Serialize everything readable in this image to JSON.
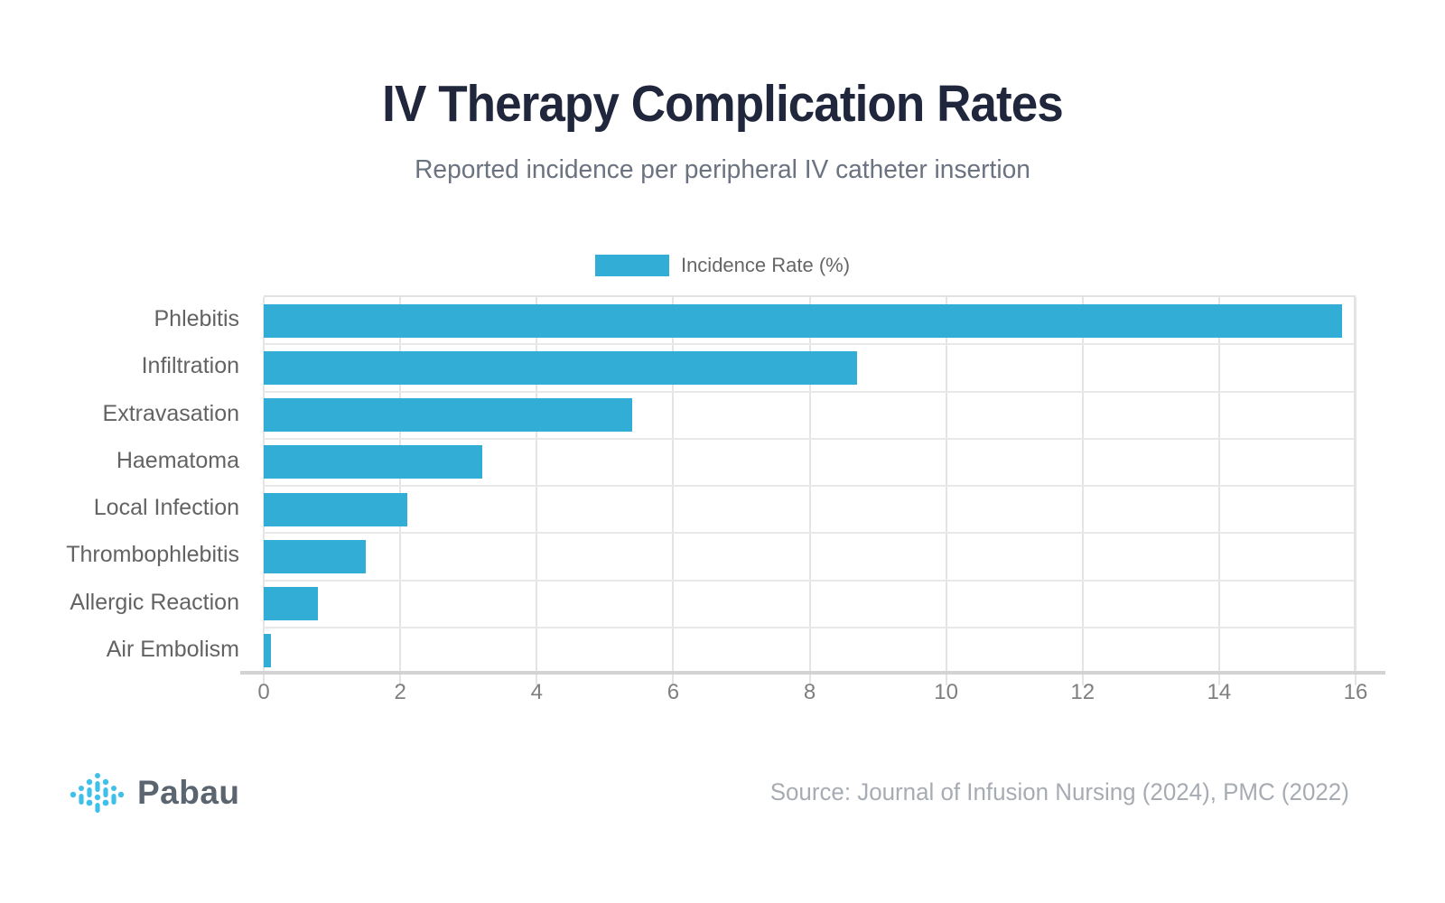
{
  "header": {
    "title": "IV Therapy Complication Rates",
    "subtitle": "Reported incidence per peripheral IV catheter insertion"
  },
  "legend": {
    "label": "Incidence Rate (%)"
  },
  "chart_data": {
    "type": "bar",
    "orientation": "horizontal",
    "title": "IV Therapy Complication Rates",
    "subtitle": "Reported incidence per peripheral IV catheter insertion",
    "series_name": "Incidence Rate (%)",
    "categories": [
      "Phlebitis",
      "Infiltration",
      "Extravasation",
      "Haematoma",
      "Local Infection",
      "Thrombophlebitis",
      "Allergic Reaction",
      "Air Embolism"
    ],
    "values": [
      15.8,
      8.7,
      5.4,
      3.2,
      2.1,
      1.5,
      0.8,
      0.1
    ],
    "xlabel": "",
    "ylabel": "",
    "xlim": [
      0,
      16
    ],
    "xticks": [
      0,
      2,
      4,
      6,
      8,
      10,
      12,
      14,
      16
    ],
    "grid": true,
    "bar_color": "#32aed6",
    "legend_position": "top-center"
  },
  "footer": {
    "brand": "Pabau",
    "source": "Source: Journal of Infusion Nursing (2024), PMC (2022)"
  },
  "colors": {
    "bar": "#32aed6",
    "title": "#20263c",
    "subtitle": "#6b7280",
    "logo_accent": "#3fc0e8"
  }
}
